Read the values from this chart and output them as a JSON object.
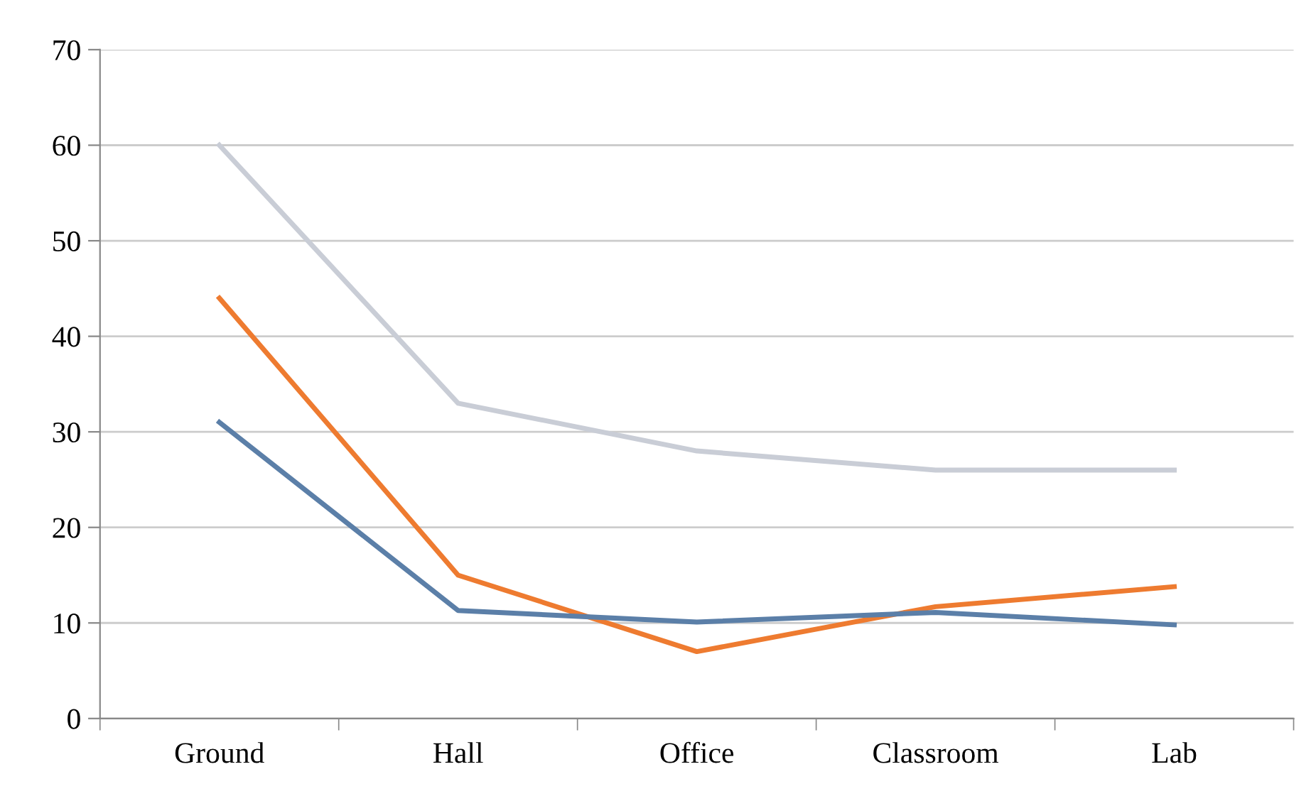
{
  "chart_data": {
    "type": "line",
    "categories": [
      "Ground",
      "Hall",
      "Office",
      "Classroom",
      "Lab"
    ],
    "series": [
      {
        "color": "#c9cdd6",
        "values": [
          60,
          33,
          28,
          26,
          26
        ]
      },
      {
        "color": "#ee7b30",
        "values": [
          44,
          15,
          7,
          11.7,
          13.8
        ]
      },
      {
        "color": "#5b7fa8",
        "values": [
          31,
          11.3,
          10.1,
          11.1,
          9.8
        ]
      }
    ],
    "ylim": [
      0,
      70
    ],
    "yticks": [
      0,
      10,
      20,
      30,
      40,
      50,
      60,
      70
    ],
    "grid": "y",
    "legend": false,
    "marker": "none",
    "line_style": "solid"
  }
}
